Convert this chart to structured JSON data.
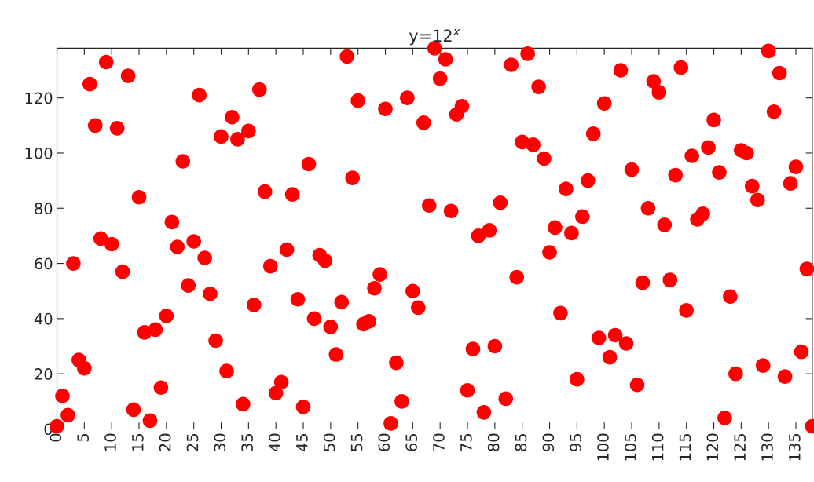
{
  "chart_data": {
    "type": "scatter",
    "title": "y=12$^{x}$",
    "x": [
      0,
      1,
      2,
      3,
      4,
      5,
      6,
      7,
      8,
      9,
      10,
      11,
      12,
      13,
      14,
      15,
      16,
      17,
      18,
      19,
      20,
      21,
      22,
      23,
      24,
      25,
      26,
      27,
      28,
      29,
      30,
      31,
      32,
      33,
      34,
      35,
      36,
      37,
      38,
      39,
      40,
      41,
      42,
      43,
      44,
      45,
      46,
      47,
      48,
      49,
      50,
      51,
      52,
      53,
      54,
      55,
      56,
      57,
      58,
      59,
      60,
      61,
      62,
      63,
      64,
      65,
      66,
      67,
      68,
      69,
      70,
      71,
      72,
      73,
      74,
      75,
      76,
      77,
      78,
      79,
      80,
      81,
      82,
      83,
      84,
      85,
      86,
      87,
      88,
      89,
      90,
      91,
      92,
      93,
      94,
      95,
      96,
      97,
      98,
      99,
      100,
      101,
      102,
      103,
      104,
      105,
      106,
      107,
      108,
      109,
      110,
      111,
      112,
      113,
      114,
      115,
      116,
      117,
      118,
      119,
      120,
      121,
      122,
      123,
      124,
      125,
      126,
      127,
      128,
      129,
      130,
      131,
      132,
      133,
      134,
      135,
      136,
      137,
      138
    ],
    "series": [
      {
        "color": "#ff0000",
        "values": [
          1,
          12,
          5,
          60,
          25,
          22,
          125,
          110,
          69,
          133,
          67,
          109,
          57,
          128,
          7,
          84,
          35,
          3,
          36,
          15,
          41,
          75,
          66,
          97,
          52,
          68,
          121,
          62,
          49,
          32,
          106,
          21,
          113,
          105,
          9,
          108,
          45,
          123,
          86,
          59,
          13,
          17,
          65,
          85,
          47,
          8,
          96,
          40,
          63,
          61,
          37,
          27,
          46,
          135,
          91,
          119,
          38,
          39,
          51,
          56,
          116,
          2,
          24,
          10,
          120,
          50,
          44,
          111,
          81,
          138,
          127,
          134,
          79,
          114,
          117,
          14,
          29,
          70,
          6,
          72,
          30,
          82,
          11,
          132,
          55,
          104,
          136,
          103,
          124,
          98,
          64,
          73,
          42,
          87,
          71,
          18,
          77,
          90,
          107,
          33,
          118,
          26,
          34,
          130,
          31,
          94,
          16,
          53,
          80,
          126,
          122,
          74,
          54,
          92,
          131,
          43,
          99,
          76,
          78,
          102,
          112,
          93,
          4,
          48,
          20,
          101,
          100,
          88,
          83,
          23,
          137,
          115,
          129,
          19,
          89,
          95,
          28,
          58,
          1
        ]
      }
    ],
    "xlim": [
      0,
      138
    ],
    "ylim": [
      0,
      138
    ],
    "xticks": [
      0,
      5,
      10,
      15,
      20,
      25,
      30,
      35,
      40,
      45,
      50,
      55,
      60,
      65,
      70,
      75,
      80,
      85,
      90,
      95,
      100,
      105,
      110,
      115,
      120,
      125,
      130,
      135
    ],
    "yticks": [
      0,
      20,
      40,
      60,
      80,
      100,
      120
    ],
    "marker": "circle",
    "grid": false,
    "legend": false
  }
}
